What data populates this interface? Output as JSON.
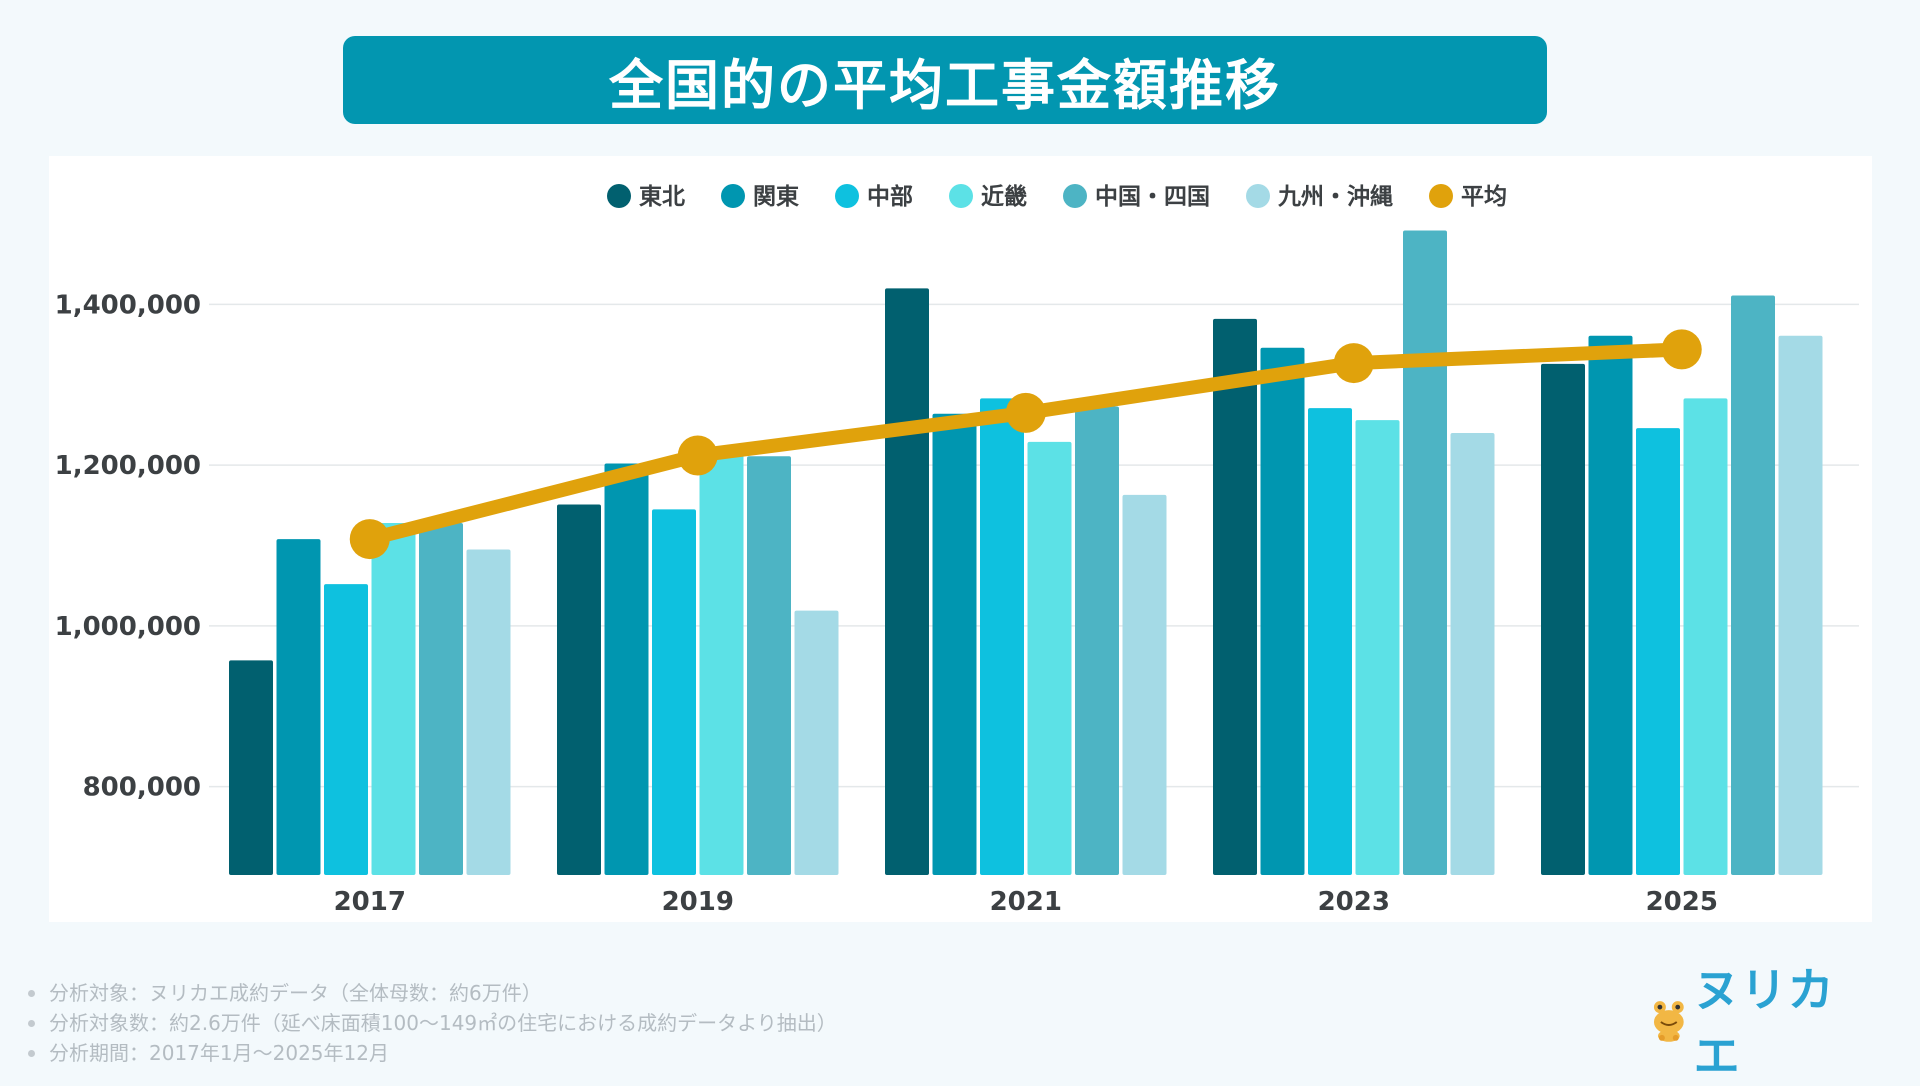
{
  "title": "全国的の平均工事金額推移",
  "colors": {
    "東北": "#01606f",
    "関東": "#0096b0",
    "中部": "#0ec1df",
    "近畿": "#5ce1e6",
    "中国・四国": "#4db4c4",
    "九州・沖縄": "#a4dae6",
    "平均": "#e0a20c",
    "title_bg": "#0296b0",
    "logo": "#2aa2d2"
  },
  "chart_data": {
    "type": "bar",
    "categories": [
      "2017",
      "2019",
      "2021",
      "2023",
      "2025"
    ],
    "series": [
      {
        "name": "東北",
        "type": "bar",
        "values": [
          957000,
          1151000,
          1420000,
          1382000,
          1326000
        ]
      },
      {
        "name": "関東",
        "type": "bar",
        "values": [
          1108000,
          1202000,
          1264000,
          1346000,
          1361000
        ]
      },
      {
        "name": "中部",
        "type": "bar",
        "values": [
          1052000,
          1145000,
          1283000,
          1271000,
          1246000
        ]
      },
      {
        "name": "近畿",
        "type": "bar",
        "values": [
          1128000,
          1218000,
          1229000,
          1256000,
          1283000
        ]
      },
      {
        "name": "中国・四国",
        "type": "bar",
        "values": [
          1128000,
          1211000,
          1273000,
          1492000,
          1411000
        ]
      },
      {
        "name": "九州・沖縄",
        "type": "bar",
        "values": [
          1095000,
          1019000,
          1163000,
          1240000,
          1361000
        ]
      },
      {
        "name": "平均",
        "type": "line",
        "values": [
          1108000,
          1212000,
          1265000,
          1327000,
          1344000
        ]
      }
    ],
    "yticks": [
      800000,
      1000000,
      1200000,
      1400000
    ],
    "ytick_labels": [
      "800,000",
      "1,000,000",
      "1,200,000",
      "1,400,000"
    ],
    "ylim": [
      690000,
      1510000
    ],
    "legend": [
      "東北",
      "関東",
      "中部",
      "近畿",
      "中国・四国",
      "九州・沖縄",
      "平均"
    ],
    "legend_position": "top",
    "grid": true
  },
  "footer": {
    "notes": [
      "分析対象：ヌリカエ成約データ（全体母数：約6万件）",
      "分析対象数：約2.6万件（延べ床面積100〜149㎡の住宅における成約データより抽出）",
      "分析期間：2017年1月〜2025年12月"
    ]
  },
  "logo": {
    "text": "ヌリカエ",
    "mascot": "frog-mascot-icon"
  }
}
